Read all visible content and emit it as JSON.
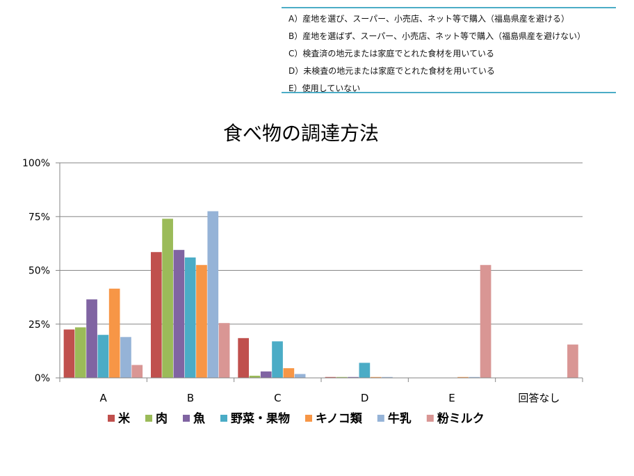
{
  "options": [
    "A）産地を選び、スーパー、小売店、ネット等で購入（福島県産を避ける）",
    "B）産地を選ばず、スーパー、小売店、ネット等で購入（福島県産を避けない）",
    "C）検査済の地元または家庭でとれた食材を用いている",
    "D）未検査の地元または家庭でとれた食材を用いている",
    "E）使用していない"
  ],
  "chart_data": {
    "type": "bar",
    "title": "食べ物の調達方法",
    "categories": [
      "A",
      "B",
      "C",
      "D",
      "E",
      "回答なし"
    ],
    "y_ticks": [
      "0%",
      "25%",
      "50%",
      "75%",
      "100%"
    ],
    "ylim": [
      0,
      100
    ],
    "grid": true,
    "legend_position": "bottom",
    "series": [
      {
        "name": "米",
        "color": "#c0504d",
        "values": [
          22.5,
          58.5,
          18.5,
          0.4,
          0,
          0
        ]
      },
      {
        "name": "肉",
        "color": "#9bbb59",
        "values": [
          23.5,
          74,
          1,
          0.4,
          0,
          0
        ]
      },
      {
        "name": "魚",
        "color": "#8064a2",
        "values": [
          36.5,
          59.5,
          3,
          0.4,
          0,
          0
        ]
      },
      {
        "name": "野菜・果物",
        "color": "#4bacc6",
        "values": [
          20,
          56,
          17,
          7,
          0,
          0
        ]
      },
      {
        "name": "キノコ類",
        "color": "#f79646",
        "values": [
          41.5,
          52.5,
          4.5,
          0.4,
          0.4,
          0
        ]
      },
      {
        "name": "牛乳",
        "color": "#95b3d7",
        "values": [
          19,
          77.5,
          1.8,
          0.4,
          0.4,
          0
        ]
      },
      {
        "name": "粉ミルク",
        "color": "#d99694",
        "values": [
          6,
          25.5,
          0,
          0,
          52.5,
          15.5
        ]
      }
    ]
  }
}
